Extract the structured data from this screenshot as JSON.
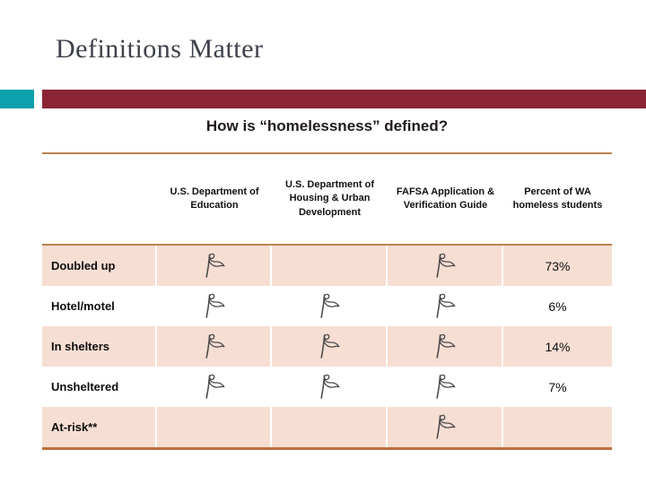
{
  "slide": {
    "title": "Definitions Matter",
    "subtitle": "How is “homelessness” defined?"
  },
  "colors": {
    "teal_accent": "#0BA0AC",
    "maroon_accent": "#8A2433",
    "row_pink": "#F7DED2",
    "rule_tan": "#B9824F",
    "rule_bottom": "#BE6E3D",
    "title_text": "#3E414B"
  },
  "table": {
    "column_headers": [
      "",
      "U.S. Department of Education",
      "U.S. Department of Housing & Urban Development",
      "FAFSA Application & Verification Guide",
      "Percent of WA homeless students"
    ],
    "flag_columns": [
      "education",
      "hud",
      "fafsa"
    ],
    "rows": [
      {
        "label": "Doubled up",
        "flags": [
          true,
          false,
          true
        ],
        "percent": "73%"
      },
      {
        "label": "Hotel/motel",
        "flags": [
          true,
          true,
          true
        ],
        "percent": "6%"
      },
      {
        "label": "In shelters",
        "flags": [
          true,
          true,
          true
        ],
        "percent": "14%"
      },
      {
        "label": "Unsheltered",
        "flags": [
          true,
          true,
          true
        ],
        "percent": "7%"
      },
      {
        "label": "At-risk**",
        "flags": [
          false,
          false,
          true
        ],
        "percent": ""
      }
    ]
  }
}
